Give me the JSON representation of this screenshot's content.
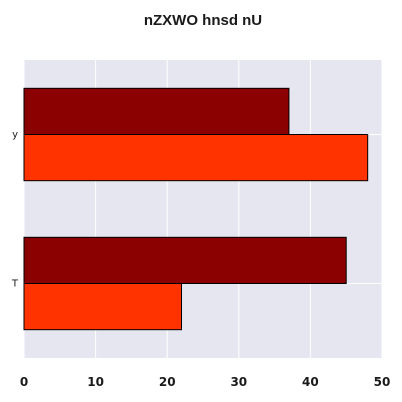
{
  "chart_data": {
    "type": "bar",
    "orientation": "horizontal",
    "title": "nZXWO hnsd nU",
    "xlabel": "",
    "ylabel": "",
    "categories": [
      "y",
      "T"
    ],
    "series": [
      {
        "values": [
          37,
          45
        ],
        "color": "#8b0000"
      },
      {
        "values": [
          48,
          22
        ],
        "color": "#ff3300"
      }
    ],
    "xlim": [
      0,
      50
    ],
    "xticks": [
      0,
      10,
      20,
      30,
      40,
      50
    ],
    "grid": true,
    "legend": "none",
    "background": "#e6e6f0",
    "edge_color": "#000000"
  }
}
